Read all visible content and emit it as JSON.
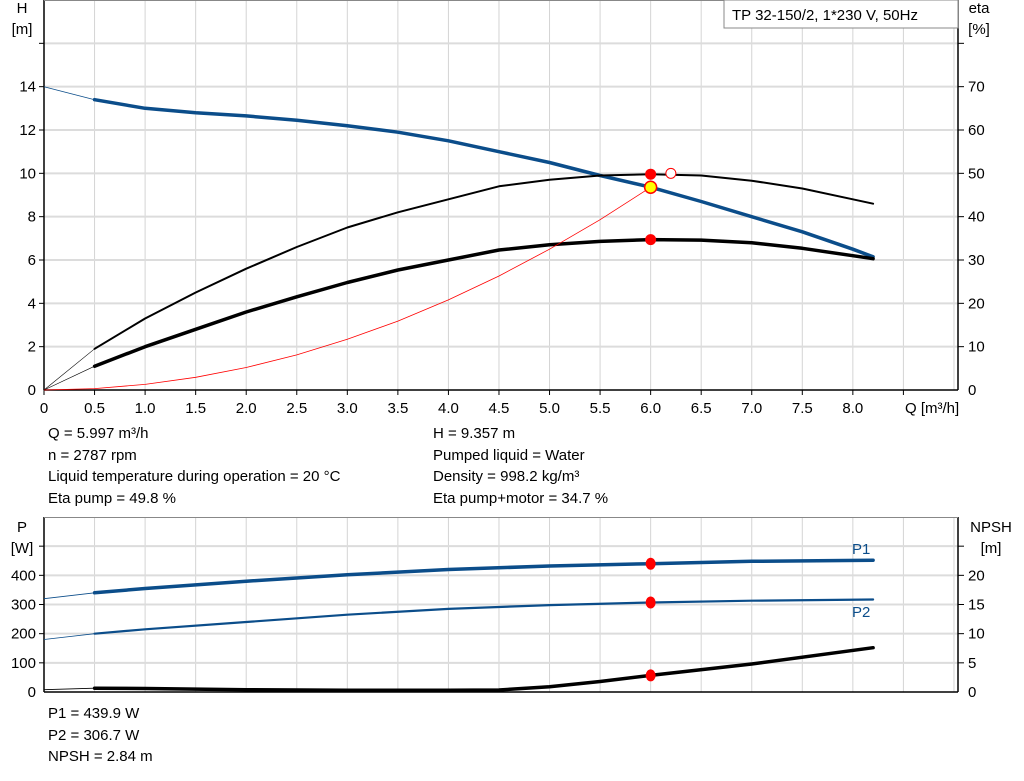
{
  "colors": {
    "head": "#0b4d8a",
    "eta": "#000000",
    "system": "#ff0000",
    "point": "#ff0000",
    "duty_point": "#ffff00",
    "power": "#0b4d8a",
    "npsh": "#000000",
    "grid": "#d4d4d4"
  },
  "chart_data": [
    {
      "type": "line",
      "title": "TP 32-150/2, 1*230 V, 50Hz",
      "xlabel": "Q [m³/h]",
      "ylabel_left": [
        "H",
        "[m]"
      ],
      "ylabel_right": [
        "eta",
        "[%]"
      ],
      "xlim": [
        0,
        9.04
      ],
      "ylim_left": [
        0,
        18
      ],
      "ylim_right": [
        0,
        90
      ],
      "x_ticks": [
        "0",
        "0.5",
        "1.0",
        "1.5",
        "2.0",
        "2.5",
        "3.0",
        "3.5",
        "4.0",
        "4.5",
        "5.0",
        "5.5",
        "6.0",
        "6.5",
        "7.0",
        "7.5",
        "8.0"
      ],
      "y_ticks_left": [
        "0",
        "2",
        "4",
        "6",
        "8",
        "10",
        "12",
        "14"
      ],
      "y_ticks_right": [
        "0",
        "10",
        "20",
        "30",
        "40",
        "50",
        "60",
        "70"
      ],
      "grid": true,
      "series": [
        {
          "key": "head",
          "axis": "left",
          "x": [
            0,
            0.5,
            1.0,
            1.5,
            2.0,
            2.5,
            3.0,
            3.5,
            4.0,
            4.5,
            5.0,
            5.5,
            6.0,
            6.5,
            7.0,
            7.5,
            8.0,
            8.2
          ],
          "y": [
            14.0,
            13.4,
            13.0,
            12.8,
            12.65,
            12.45,
            12.2,
            11.9,
            11.5,
            11.0,
            10.5,
            9.9,
            9.36,
            8.7,
            8.0,
            7.3,
            6.5,
            6.15
          ]
        },
        {
          "key": "eta_pump",
          "axis": "right",
          "x": [
            0,
            0.5,
            1.0,
            1.5,
            2.0,
            2.5,
            3.0,
            3.5,
            4.0,
            4.5,
            5.0,
            5.5,
            6.0,
            6.5,
            7.0,
            7.5,
            8.0,
            8.2
          ],
          "y": [
            0,
            9.5,
            16.5,
            22.5,
            28,
            33,
            37.5,
            41,
            44,
            47,
            48.5,
            49.5,
            49.8,
            49.5,
            48.3,
            46.5,
            44,
            43
          ]
        },
        {
          "key": "eta_pump_motor",
          "axis": "right",
          "x": [
            0,
            0.5,
            1.0,
            1.5,
            2.0,
            2.5,
            3.0,
            3.5,
            4.0,
            4.5,
            5.0,
            5.5,
            6.0,
            6.5,
            7.0,
            7.5,
            8.0,
            8.2
          ],
          "y": [
            0,
            5.5,
            10,
            14,
            18,
            21.5,
            24.8,
            27.7,
            30,
            32.3,
            33.5,
            34.3,
            34.7,
            34.6,
            34,
            32.7,
            31,
            30.3
          ]
        },
        {
          "key": "system_curve",
          "axis": "left",
          "x": [
            0,
            0.5,
            1.0,
            1.5,
            2.0,
            2.5,
            3.0,
            3.5,
            4.0,
            4.5,
            5.0,
            5.5,
            6.0
          ],
          "y": [
            0,
            0.065,
            0.26,
            0.585,
            1.04,
            1.62,
            2.34,
            3.18,
            4.16,
            5.26,
            6.5,
            7.86,
            9.357
          ]
        }
      ],
      "points": [
        {
          "key": "eta_pump_point",
          "axis": "right",
          "x": 6.0,
          "y": 49.8,
          "style": "filled"
        },
        {
          "key": "eta_total_point",
          "axis": "right",
          "x": 6.0,
          "y": 34.7,
          "style": "filled"
        },
        {
          "key": "duty_point",
          "axis": "left",
          "x": 6.0,
          "y": 9.357,
          "style": "yellow"
        },
        {
          "key": "best_efficiency_point",
          "axis": "right",
          "x": 6.2,
          "y": 50,
          "style": "hollow"
        }
      ]
    },
    {
      "type": "line",
      "ylabel_left": [
        "P",
        "[W]"
      ],
      "ylabel_right": [
        "NPSH",
        "[m]"
      ],
      "xlim": [
        0,
        9.04
      ],
      "ylim_left": [
        0,
        600
      ],
      "ylim_right": [
        0,
        30
      ],
      "y_ticks_left": [
        "0",
        "100",
        "200",
        "300",
        "400"
      ],
      "y_ticks_right": [
        "0",
        "5",
        "10",
        "15",
        "20"
      ],
      "grid": true,
      "series": [
        {
          "key": "P1",
          "name": "P1",
          "axis": "left",
          "x": [
            0,
            0.5,
            1.0,
            2.0,
            3.0,
            4.0,
            5.0,
            6.0,
            7.0,
            8.2
          ],
          "y": [
            320,
            340,
            355,
            380,
            402,
            420,
            432,
            440,
            448,
            452
          ]
        },
        {
          "key": "P2",
          "name": "P2",
          "axis": "left",
          "x": [
            0,
            0.5,
            1.0,
            2.0,
            3.0,
            4.0,
            5.0,
            6.0,
            7.0,
            8.2
          ],
          "y": [
            180,
            200,
            215,
            240,
            265,
            285,
            298,
            307,
            313,
            317
          ]
        },
        {
          "key": "NPSH",
          "axis": "right",
          "x": [
            0,
            0.5,
            1.0,
            2.0,
            3.0,
            4.0,
            4.5,
            5.0,
            5.5,
            6.0,
            7.0,
            8.2
          ],
          "y": [
            0.4,
            0.65,
            0.6,
            0.4,
            0.3,
            0.3,
            0.35,
            0.9,
            1.8,
            2.84,
            4.8,
            7.6
          ]
        }
      ],
      "points": [
        {
          "key": "P1_point",
          "axis": "left",
          "x": 6.0,
          "y": 439.9
        },
        {
          "key": "P2_point",
          "axis": "left",
          "x": 6.0,
          "y": 306.7
        },
        {
          "key": "NPSH_point",
          "axis": "right",
          "x": 6.0,
          "y": 2.84
        }
      ]
    }
  ],
  "info_top_left": [
    "Q = 5.997 m³/h",
    "n = 2787 rpm",
    "Liquid temperature during operation = 20 °C",
    "Eta pump = 49.8 %"
  ],
  "info_top_right": [
    "H = 9.357 m",
    "Pumped liquid = Water",
    "Density = 998.2 kg/m³",
    "Eta pump+motor = 34.7 %"
  ],
  "info_bottom": [
    "P1 = 439.9 W",
    "P2 = 306.7 W",
    "NPSH = 2.84 m"
  ]
}
